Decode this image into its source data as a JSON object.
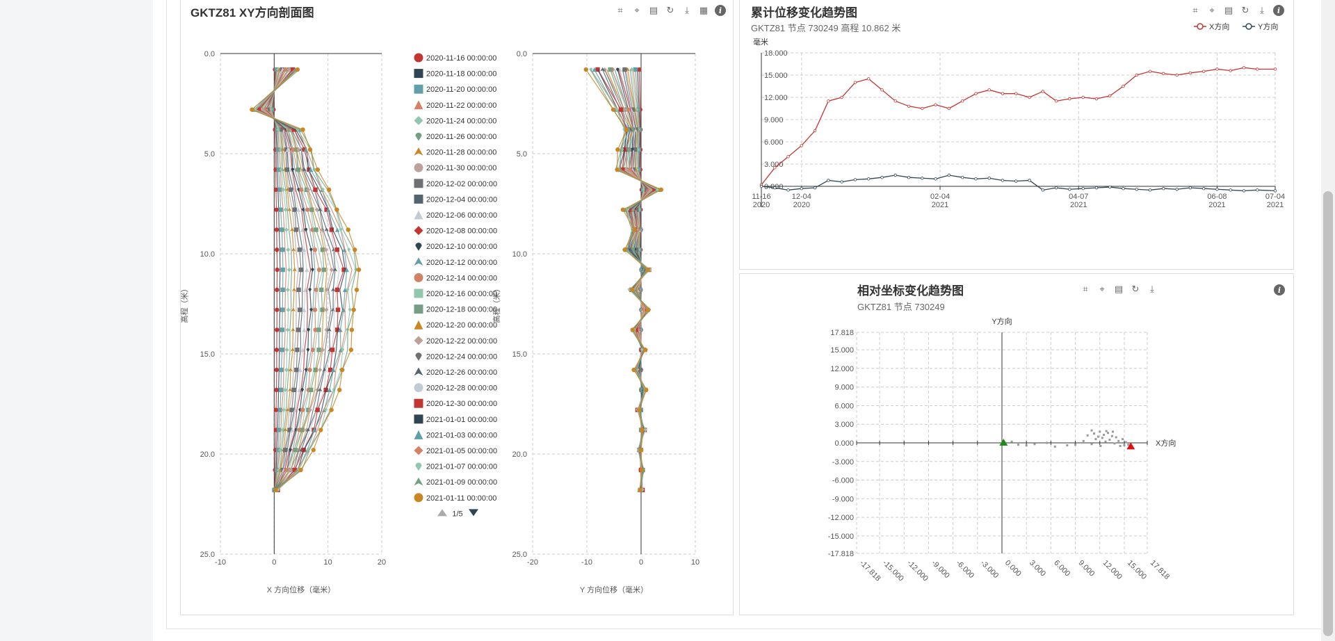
{
  "profile": {
    "title": "GKTZ81 XY方向剖面图",
    "x_chart": {
      "type": "line",
      "xlabel": "X 方向位移（毫米）",
      "ylabel": "高程（米）",
      "xlim": [
        -10,
        20
      ],
      "xticks": [
        "-10",
        "0",
        "10",
        "20"
      ],
      "ylim": [
        0,
        25
      ],
      "yticks": [
        "0.0",
        "5.0",
        "10.0",
        "15.0",
        "20.0",
        "25.0"
      ],
      "depths": [
        0.8,
        2.8,
        3.8,
        4.8,
        5.8,
        6.8,
        7.8,
        8.8,
        9.8,
        10.8,
        11.8,
        12.8,
        13.8,
        14.8,
        15.8,
        16.8,
        17.8,
        18.8,
        19.8,
        20.8,
        21.8
      ],
      "envelope_values": [
        4.5,
        -4,
        5,
        7,
        8,
        10,
        12,
        13.5,
        15,
        16,
        15,
        15,
        14.5,
        14,
        13,
        12,
        10.5,
        9,
        7,
        5,
        0.5
      ]
    },
    "y_chart": {
      "type": "line",
      "xlabel": "Y 方向位移（毫米）",
      "ylabel": "高程（米）",
      "xlim": [
        -20,
        10
      ],
      "xticks": [
        "-20",
        "-10",
        "0",
        "10"
      ],
      "ylim": [
        0,
        25
      ],
      "yticks": [
        "0.0",
        "5.0",
        "10.0",
        "15.0",
        "20.0",
        "25.0"
      ],
      "depths": [
        0.8,
        2.8,
        3.8,
        4.8,
        5.8,
        6.8,
        7.8,
        8.8,
        9.8,
        10.8,
        11.8,
        12.8,
        13.8,
        14.8,
        15.8,
        16.8,
        17.8,
        18.8,
        19.8,
        20.8,
        21.8
      ],
      "envelope_values": [
        -10,
        -5,
        -3,
        -4,
        -4.5,
        3.5,
        -3,
        -1.5,
        -3,
        1.5,
        -2,
        1.5,
        -1.5,
        0.5,
        -1,
        0.8,
        -0.5,
        0.5,
        -0.3,
        0.2,
        0
      ]
    },
    "legend": {
      "items": [
        {
          "label": "2020-11-16 00:00:00",
          "symbol": "circle",
          "color": "#c23531"
        },
        {
          "label": "2020-11-18 00:00:00",
          "symbol": "rect",
          "color": "#2f4554"
        },
        {
          "label": "2020-11-20 00:00:00",
          "symbol": "roundRect",
          "color": "#61a0a8"
        },
        {
          "label": "2020-11-22 00:00:00",
          "symbol": "triangle",
          "color": "#d48265"
        },
        {
          "label": "2020-11-24 00:00:00",
          "symbol": "diamond",
          "color": "#91c7ae"
        },
        {
          "label": "2020-11-26 00:00:00",
          "symbol": "pin",
          "color": "#749f83"
        },
        {
          "label": "2020-11-28 00:00:00",
          "symbol": "arrow",
          "color": "#ca8622"
        },
        {
          "label": "2020-11-30 00:00:00",
          "symbol": "circle",
          "color": "#bda29a"
        },
        {
          "label": "2020-12-02 00:00:00",
          "symbol": "rect",
          "color": "#6e7074"
        },
        {
          "label": "2020-12-04 00:00:00",
          "symbol": "roundRect",
          "color": "#546570"
        },
        {
          "label": "2020-12-06 00:00:00",
          "symbol": "triangle",
          "color": "#c4ccd3"
        },
        {
          "label": "2020-12-08 00:00:00",
          "symbol": "diamond",
          "color": "#c23531"
        },
        {
          "label": "2020-12-10 00:00:00",
          "symbol": "pin",
          "color": "#2f4554"
        },
        {
          "label": "2020-12-12 00:00:00",
          "symbol": "arrow",
          "color": "#61a0a8"
        },
        {
          "label": "2020-12-14 00:00:00",
          "symbol": "circle",
          "color": "#d48265"
        },
        {
          "label": "2020-12-16 00:00:00",
          "symbol": "rect",
          "color": "#91c7ae"
        },
        {
          "label": "2020-12-18 00:00:00",
          "symbol": "roundRect",
          "color": "#749f83"
        },
        {
          "label": "2020-12-20 00:00:00",
          "symbol": "triangle",
          "color": "#ca8622"
        },
        {
          "label": "2020-12-22 00:00:00",
          "symbol": "diamond",
          "color": "#bda29a"
        },
        {
          "label": "2020-12-24 00:00:00",
          "symbol": "pin",
          "color": "#6e7074"
        },
        {
          "label": "2020-12-26 00:00:00",
          "symbol": "arrow",
          "color": "#546570"
        },
        {
          "label": "2020-12-28 00:00:00",
          "symbol": "circle",
          "color": "#c4ccd3"
        },
        {
          "label": "2020-12-30 00:00:00",
          "symbol": "rect",
          "color": "#c23531"
        },
        {
          "label": "2021-01-01 00:00:00",
          "symbol": "roundRect",
          "color": "#2f4554"
        },
        {
          "label": "2021-01-03 00:00:00",
          "symbol": "triangle",
          "color": "#61a0a8"
        },
        {
          "label": "2021-01-05 00:00:00",
          "symbol": "diamond",
          "color": "#d48265"
        },
        {
          "label": "2021-01-07 00:00:00",
          "symbol": "pin",
          "color": "#91c7ae"
        },
        {
          "label": "2021-01-09 00:00:00",
          "symbol": "arrow",
          "color": "#749f83"
        },
        {
          "label": "2021-01-11 00:00:00",
          "symbol": "circle",
          "color": "#ca8622"
        }
      ],
      "page": "1/5"
    }
  },
  "trend": {
    "title": "累计位移变化趋势图",
    "subtitle": "GKTZ81 节点 730249 高程 10.862 米",
    "chart_data": {
      "type": "line",
      "ylabel": "毫米",
      "ylim": [
        0,
        18
      ],
      "yticks": [
        "0.000",
        "3.000",
        "6.000",
        "9.000",
        "12.000",
        "15.000",
        "18.000"
      ],
      "xticks": [
        {
          "top": "11-16",
          "bottom": "2020"
        },
        {
          "top": "12-04",
          "bottom": "2020"
        },
        {
          "top": "02-04",
          "bottom": "2021"
        },
        {
          "top": "04-07",
          "bottom": "2021"
        },
        {
          "top": "06-08",
          "bottom": "2021"
        },
        {
          "top": "07-04",
          "bottom": "2021"
        }
      ],
      "x_dates": [
        "2020-11-16",
        "2020-12-04",
        "2021-02-04",
        "2021-04-07",
        "2021-06-08",
        "2021-07-04"
      ],
      "series": [
        {
          "name": "X方向",
          "color": "#c23531",
          "dates": [
            "2020-11-16",
            "2020-11-22",
            "2020-11-28",
            "2020-12-04",
            "2020-12-10",
            "2020-12-16",
            "2020-12-22",
            "2020-12-28",
            "2021-01-03",
            "2021-01-09",
            "2021-01-15",
            "2021-01-21",
            "2021-01-27",
            "2021-02-02",
            "2021-02-08",
            "2021-02-14",
            "2021-02-20",
            "2021-02-26",
            "2021-03-04",
            "2021-03-10",
            "2021-03-16",
            "2021-03-22",
            "2021-03-28",
            "2021-04-03",
            "2021-04-09",
            "2021-04-15",
            "2021-04-21",
            "2021-04-27",
            "2021-05-03",
            "2021-05-09",
            "2021-05-15",
            "2021-05-21",
            "2021-05-27",
            "2021-06-02",
            "2021-06-08",
            "2021-06-14",
            "2021-06-20",
            "2021-06-26",
            "2021-07-04"
          ],
          "values": [
            0.2,
            2.5,
            4,
            5.5,
            7.5,
            11.5,
            12,
            14,
            14.5,
            13,
            11.5,
            10.8,
            10.5,
            11,
            10.5,
            11.5,
            12.5,
            13,
            12.5,
            12.5,
            12,
            12.8,
            11.5,
            11.8,
            12,
            11.8,
            12.2,
            13.5,
            15,
            15.5,
            15.2,
            15,
            15.3,
            15.5,
            15.8,
            15.6,
            16,
            15.8,
            15.8
          ]
        },
        {
          "name": "Y方向",
          "color": "#2f4554",
          "dates": [
            "2020-11-16",
            "2020-11-22",
            "2020-11-28",
            "2020-12-04",
            "2020-12-10",
            "2020-12-16",
            "2020-12-22",
            "2020-12-28",
            "2021-01-03",
            "2021-01-09",
            "2021-01-15",
            "2021-01-21",
            "2021-01-27",
            "2021-02-02",
            "2021-02-08",
            "2021-02-14",
            "2021-02-20",
            "2021-02-26",
            "2021-03-04",
            "2021-03-10",
            "2021-03-16",
            "2021-03-22",
            "2021-03-28",
            "2021-04-03",
            "2021-04-09",
            "2021-04-15",
            "2021-04-21",
            "2021-04-27",
            "2021-05-03",
            "2021-05-09",
            "2021-05-15",
            "2021-05-21",
            "2021-05-27",
            "2021-06-02",
            "2021-06-08",
            "2021-06-14",
            "2021-06-20",
            "2021-06-26",
            "2021-07-04"
          ],
          "values": [
            0.0,
            -0.2,
            -0.5,
            -0.3,
            -0.2,
            0.8,
            0.6,
            0.9,
            1.0,
            1.2,
            1.5,
            1.2,
            1.1,
            1.0,
            1.5,
            1.2,
            1.0,
            1.1,
            0.8,
            0.7,
            0.8,
            -0.5,
            -0.2,
            -0.4,
            -0.3,
            -0.2,
            -0.1,
            -0.3,
            -0.4,
            -0.5,
            -0.3,
            -0.4,
            -0.2,
            -0.3,
            -0.4,
            -0.5,
            -0.6,
            -0.5,
            -0.6
          ]
        }
      ]
    }
  },
  "relative": {
    "title": "相对坐标变化趋势图",
    "subtitle": "GKTZ81 节点 730249",
    "chart_data": {
      "type": "scatter",
      "xlabel": "X方向",
      "ylabel": "Y方向",
      "xlim": [
        -17.818,
        17.818
      ],
      "ylim": [
        -17.818,
        17.818
      ],
      "xticks": [
        "-17.818",
        "-15.000",
        "-12.000",
        "-9.000",
        "-6.000",
        "-3.000",
        "0.000",
        "3.000",
        "6.000",
        "9.000",
        "12.000",
        "15.000",
        "17.818"
      ],
      "yticks": [
        "17.818",
        "15.000",
        "12.000",
        "9.000",
        "6.000",
        "3.000",
        "0.000",
        "-3.000",
        "-6.000",
        "-9.000",
        "-12.000",
        "-15.000",
        "-17.818"
      ],
      "start_point": {
        "x": 0.2,
        "y": 0.0,
        "color": "#1a8a1a"
      },
      "end_point": {
        "x": 15.8,
        "y": -0.6,
        "color": "#e01010"
      },
      "points": [
        [
          1.2,
          0.2
        ],
        [
          2.0,
          -0.3
        ],
        [
          3.0,
          -0.4
        ],
        [
          4.0,
          -0.2
        ],
        [
          5.5,
          0.0
        ],
        [
          6.5,
          -0.6
        ],
        [
          8.0,
          -0.4
        ],
        [
          9.0,
          -0.3
        ],
        [
          10.0,
          0.3
        ],
        [
          10.5,
          1.2
        ],
        [
          11.0,
          2.0
        ],
        [
          11.3,
          1.5
        ],
        [
          11.8,
          1.0
        ],
        [
          12.0,
          1.8
        ],
        [
          12.3,
          0.8
        ],
        [
          12.5,
          1.3
        ],
        [
          12.7,
          0.2
        ],
        [
          13.0,
          1.6
        ],
        [
          13.2,
          0.5
        ],
        [
          13.5,
          1.1
        ],
        [
          13.8,
          -0.1
        ],
        [
          14.0,
          0.9
        ],
        [
          14.3,
          0.3
        ],
        [
          14.5,
          -0.5
        ],
        [
          14.8,
          0.6
        ],
        [
          15.0,
          -0.4
        ],
        [
          15.2,
          0.1
        ],
        [
          15.5,
          -0.3
        ],
        [
          11.5,
          0.6
        ],
        [
          12.8,
          1.9
        ],
        [
          12.1,
          -0.5
        ],
        [
          11.0,
          -0.2
        ],
        [
          13.6,
          1.8
        ]
      ]
    }
  }
}
